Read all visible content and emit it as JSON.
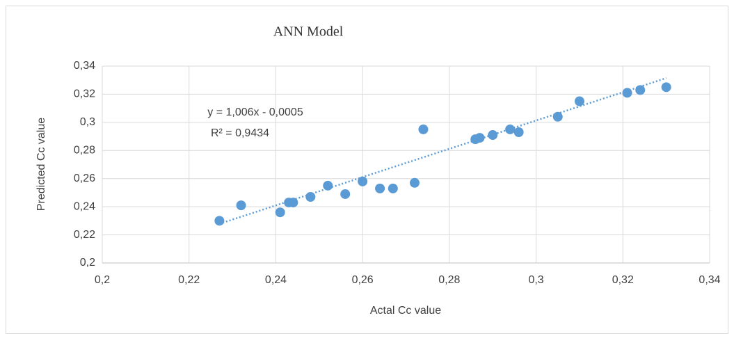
{
  "chart_data": {
    "type": "scatter",
    "title": "ANN Model",
    "x_label": "Actal Cc value",
    "y_label": "Predicted Cc value",
    "color": "#5b9bd5",
    "x": [
      0.227,
      0.232,
      0.241,
      0.243,
      0.244,
      0.248,
      0.252,
      0.256,
      0.26,
      0.264,
      0.267,
      0.272,
      0.274,
      0.286,
      0.287,
      0.29,
      0.294,
      0.296,
      0.305,
      0.31,
      0.321,
      0.324,
      0.33
    ],
    "values": [
      0.23,
      0.241,
      0.236,
      0.243,
      0.243,
      0.247,
      0.255,
      0.249,
      0.258,
      0.253,
      0.253,
      0.257,
      0.295,
      0.288,
      0.289,
      0.291,
      0.295,
      0.293,
      0.304,
      0.315,
      0.321,
      0.323,
      0.325
    ],
    "xlim": [
      0.2,
      0.34
    ],
    "ylim": [
      0.2,
      0.34
    ],
    "xticks": [
      {
        "value": 0.2,
        "label": "0,2"
      },
      {
        "value": 0.22,
        "label": "0,22"
      },
      {
        "value": 0.24,
        "label": "0,24"
      },
      {
        "value": 0.26,
        "label": "0,26"
      },
      {
        "value": 0.28,
        "label": "0,28"
      },
      {
        "value": 0.3,
        "label": "0,3"
      },
      {
        "value": 0.32,
        "label": "0,32"
      },
      {
        "value": 0.34,
        "label": "0,34"
      }
    ],
    "yticks": [
      {
        "value": 0.2,
        "label": "0,2"
      },
      {
        "value": 0.22,
        "label": "0,22"
      },
      {
        "value": 0.24,
        "label": "0,24"
      },
      {
        "value": 0.26,
        "label": "0,26"
      },
      {
        "value": 0.28,
        "label": "0,28"
      },
      {
        "value": 0.3,
        "label": "0,3"
      },
      {
        "value": 0.32,
        "label": "0,32"
      },
      {
        "value": 0.34,
        "label": "0,34"
      }
    ],
    "grid": true,
    "trendline": {
      "slope": 1.006,
      "intercept": -0.0005,
      "label": "y = 1,006x - 0,0005",
      "r2_label": "R² = 0,9434"
    }
  }
}
